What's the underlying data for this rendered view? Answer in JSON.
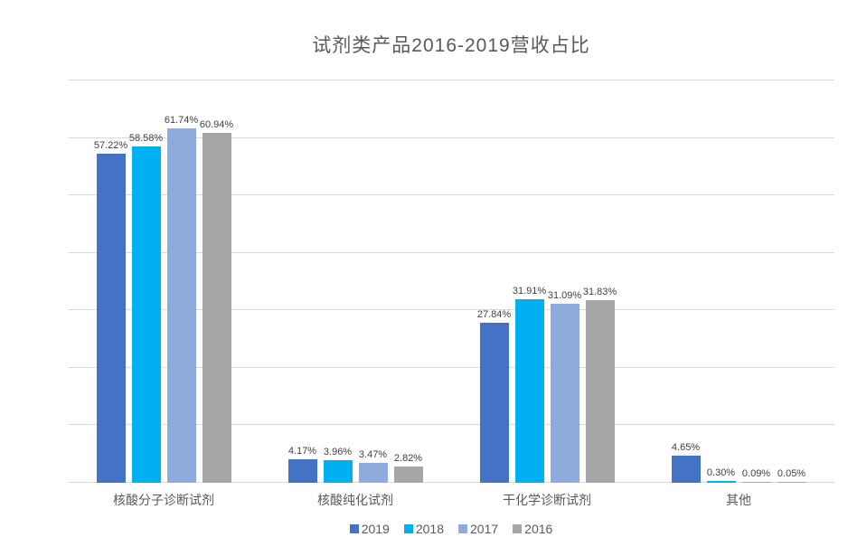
{
  "title": "试剂类产品2016-2019营收占比",
  "chart_data": {
    "type": "bar",
    "title": "试剂类产品2016-2019营收占比",
    "categories": [
      "核酸分子诊断试剂",
      "核酸纯化试剂",
      "干化学诊断试剂",
      "其他"
    ],
    "series": [
      {
        "name": "2019",
        "color": "#4472C4",
        "values": [
          57.22,
          4.17,
          27.84,
          4.65
        ]
      },
      {
        "name": "2018",
        "color": "#00B0F0",
        "values": [
          58.58,
          3.96,
          31.91,
          0.3
        ]
      },
      {
        "name": "2017",
        "color": "#8FAADC",
        "values": [
          61.74,
          3.47,
          31.09,
          0.09
        ]
      },
      {
        "name": "2016",
        "color": "#A6A6A6",
        "values": [
          60.94,
          2.82,
          31.83,
          0.05
        ]
      }
    ],
    "data_labels": true,
    "label_suffix": "%",
    "xlabel": "",
    "ylabel": "",
    "ylim": [
      0,
      70
    ],
    "grid": true,
    "grid_step": 10,
    "legend_position": "bottom"
  },
  "styles": {
    "background": "#FFFFFF",
    "grid_color": "#D9D9D9",
    "title_color": "#595959",
    "data_label_color": "#404040",
    "axis_text_color": "#595959"
  }
}
